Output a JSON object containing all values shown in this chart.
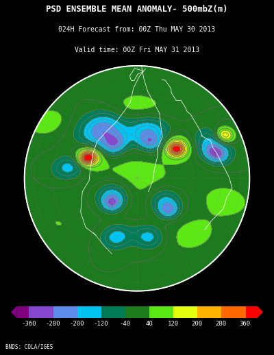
{
  "title_line1": "PSD ENSEMBLE MEAN ANOMALY- 500mbZ(m)",
  "title_line2": "024H Forecast from: 00Z Thu MAY 30 2013",
  "title_line3": "Valid time: 00Z Fri MAY 31 2013",
  "credit": "BNDS: COLA/IGES",
  "background_color": "#000000",
  "colorbar_colors_hex": [
    "#800080",
    "#9400D3",
    "#8B4CC8",
    "#7B68EE",
    "#6495ED",
    "#4169E1",
    "#00BFFF",
    "#00CED1",
    "#008B8B",
    "#006400",
    "#228B22",
    "#2E8B22",
    "#32CD32",
    "#7CFC00",
    "#ADFF2F",
    "#FFFF00",
    "#FFD700",
    "#FFA500",
    "#FF8C00",
    "#FF6400",
    "#FF4500",
    "#FF0000"
  ],
  "cbar_bounds": [
    -400,
    -360,
    -280,
    -200,
    -120,
    -40,
    40,
    120,
    200,
    280,
    360,
    400
  ],
  "cbar_tick_vals": [
    -360,
    -280,
    -200,
    -120,
    -40,
    40,
    120,
    200,
    280,
    360
  ],
  "cbar_tick_labels": [
    "-360",
    "-280",
    "-200",
    "-120",
    "-40",
    "40",
    "120",
    "200",
    "280",
    "360"
  ],
  "fig_width": 4.0,
  "fig_height": 5.18
}
